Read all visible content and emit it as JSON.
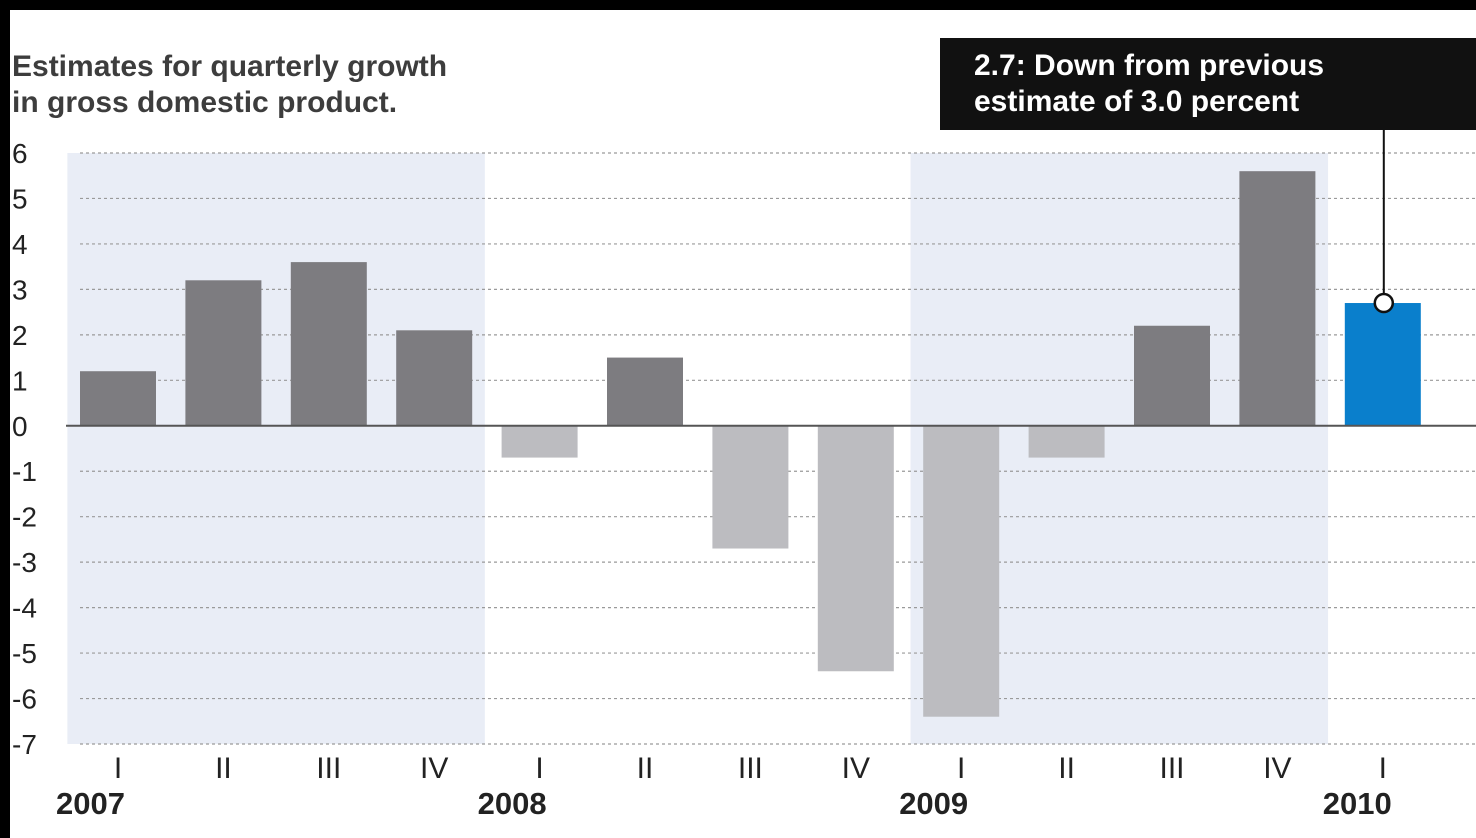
{
  "chart_data": {
    "type": "bar",
    "title_lines": [
      "Estimates for quarterly growth",
      "in gross domestic product."
    ],
    "annotation_lines": [
      "2.7: Down from previous",
      "estimate of 3.0 percent"
    ],
    "years": [
      {
        "label": "2007",
        "quarters": [
          "I",
          "II",
          "III",
          "IV"
        ]
      },
      {
        "label": "2008",
        "quarters": [
          "I",
          "II",
          "III",
          "IV"
        ]
      },
      {
        "label": "2009",
        "quarters": [
          "I",
          "II",
          "III",
          "IV"
        ]
      },
      {
        "label": "2010",
        "quarters": [
          "I"
        ]
      }
    ],
    "values": [
      1.2,
      3.2,
      3.6,
      2.1,
      -0.7,
      1.5,
      -2.7,
      -5.4,
      -6.4,
      -0.7,
      2.2,
      5.6,
      2.7
    ],
    "highlight_index": 12,
    "ylim": [
      -7,
      6
    ],
    "yticks": [
      6,
      5,
      4,
      3,
      2,
      1,
      0,
      -1,
      -2,
      -3,
      -4,
      -5,
      -6,
      -7
    ],
    "grid": true,
    "shaded_years": [
      "2007",
      "2009"
    ],
    "colors": {
      "positive": "#7d7c80",
      "negative": "#bcbcc0",
      "highlight": "#0a7fcc",
      "year_band": "#e9edf6",
      "grid": "#9a9a9a",
      "annotation_bg": "#111111"
    }
  }
}
